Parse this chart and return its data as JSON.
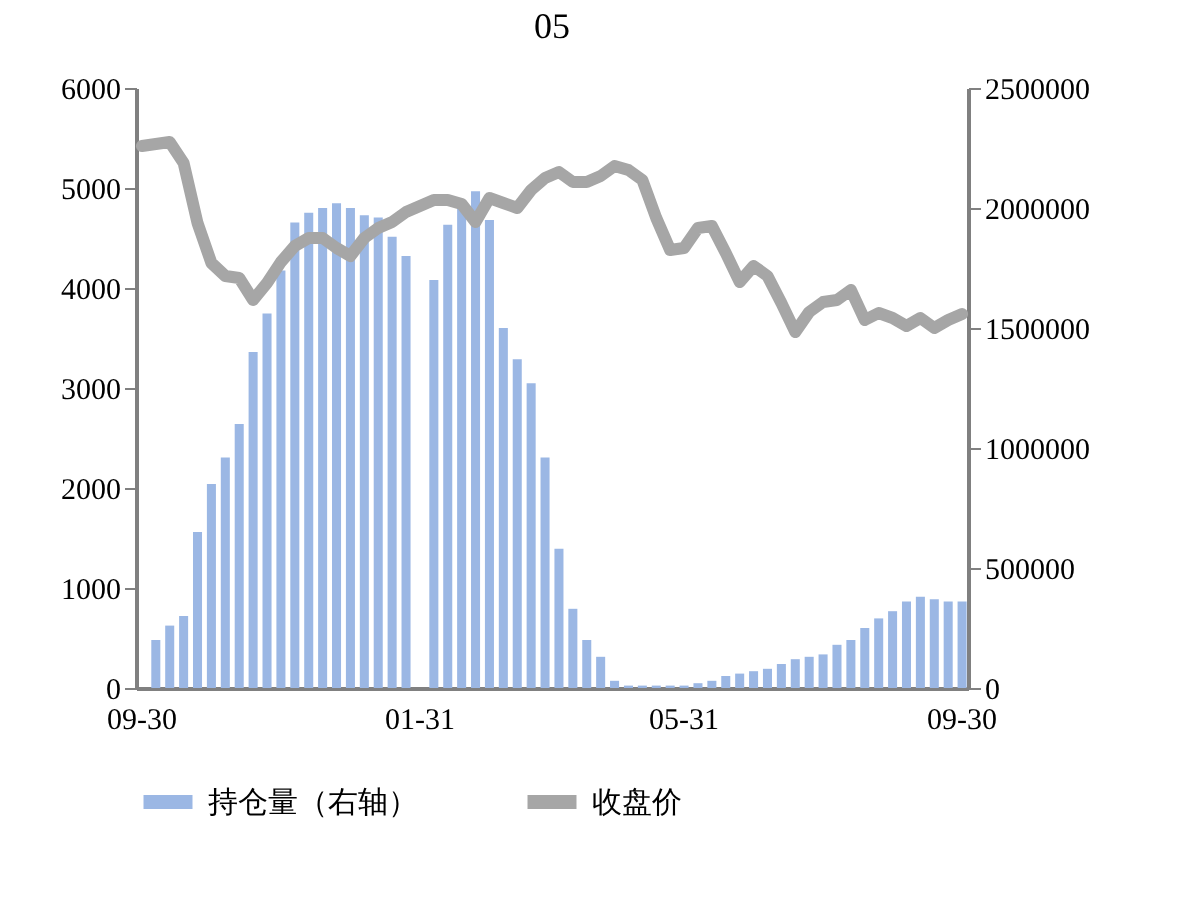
{
  "chart_data": {
    "type": "bar",
    "title": "05",
    "categories": [
      "09-30",
      null,
      null,
      null,
      null,
      null,
      null,
      null,
      null,
      null,
      null,
      null,
      null,
      null,
      null,
      null,
      null,
      null,
      null,
      null,
      "01-31",
      null,
      null,
      null,
      null,
      null,
      null,
      null,
      null,
      null,
      null,
      null,
      null,
      null,
      null,
      null,
      null,
      null,
      null,
      "05-31",
      null,
      null,
      null,
      null,
      null,
      null,
      null,
      null,
      null,
      null,
      null,
      null,
      null,
      null,
      null,
      null,
      null,
      null,
      null,
      "09-30"
    ],
    "series": [
      {
        "name": "持仓量（右轴）",
        "axis": "y2",
        "color": "#9bb7e4",
        "values": [
          0,
          200000,
          260000,
          300000,
          650000,
          850000,
          960000,
          1100000,
          1400000,
          1560000,
          1740000,
          1940000,
          1980000,
          2000000,
          2020000,
          2000000,
          1970000,
          1960000,
          1880000,
          1800000,
          0,
          1700000,
          1930000,
          2000000,
          2070000,
          1950000,
          1500000,
          1370000,
          1270000,
          960000,
          580000,
          330000,
          200000,
          130000,
          30000,
          10000,
          10000,
          10000,
          10000,
          10000,
          20000,
          30000,
          50000,
          60000,
          70000,
          80000,
          100000,
          120000,
          130000,
          140000,
          180000,
          200000,
          250000,
          290000,
          320000,
          360000,
          380000,
          370000,
          360000,
          360000
        ]
      },
      {
        "name": "收盘价",
        "type": "line",
        "axis": "y",
        "color": "#a6a6a6",
        "values": [
          5420,
          5440,
          5460,
          5250,
          4650,
          4250,
          4120,
          4100,
          3880,
          4050,
          4260,
          4420,
          4500,
          4500,
          4400,
          4320,
          4500,
          4600,
          4660,
          4760,
          4820,
          4880,
          4880,
          4840,
          4660,
          4900,
          4850,
          4800,
          4980,
          5100,
          5160,
          5060,
          5060,
          5120,
          5220,
          5180,
          5080,
          4700,
          4380,
          4400,
          4600,
          4620,
          4350,
          4060,
          4220,
          4120,
          3850,
          3560,
          3760,
          3860,
          3880,
          3980,
          3680,
          3750,
          3700,
          3620,
          3700,
          3600,
          3680,
          3740
        ]
      }
    ],
    "ylim": [
      0,
      6000
    ],
    "yticks": [
      0,
      1000,
      2000,
      3000,
      4000,
      5000,
      6000
    ],
    "y2lim": [
      0,
      2500000
    ],
    "y2ticks": [
      0,
      500000,
      1000000,
      1500000,
      2000000,
      2500000
    ],
    "legend": "bottom"
  }
}
